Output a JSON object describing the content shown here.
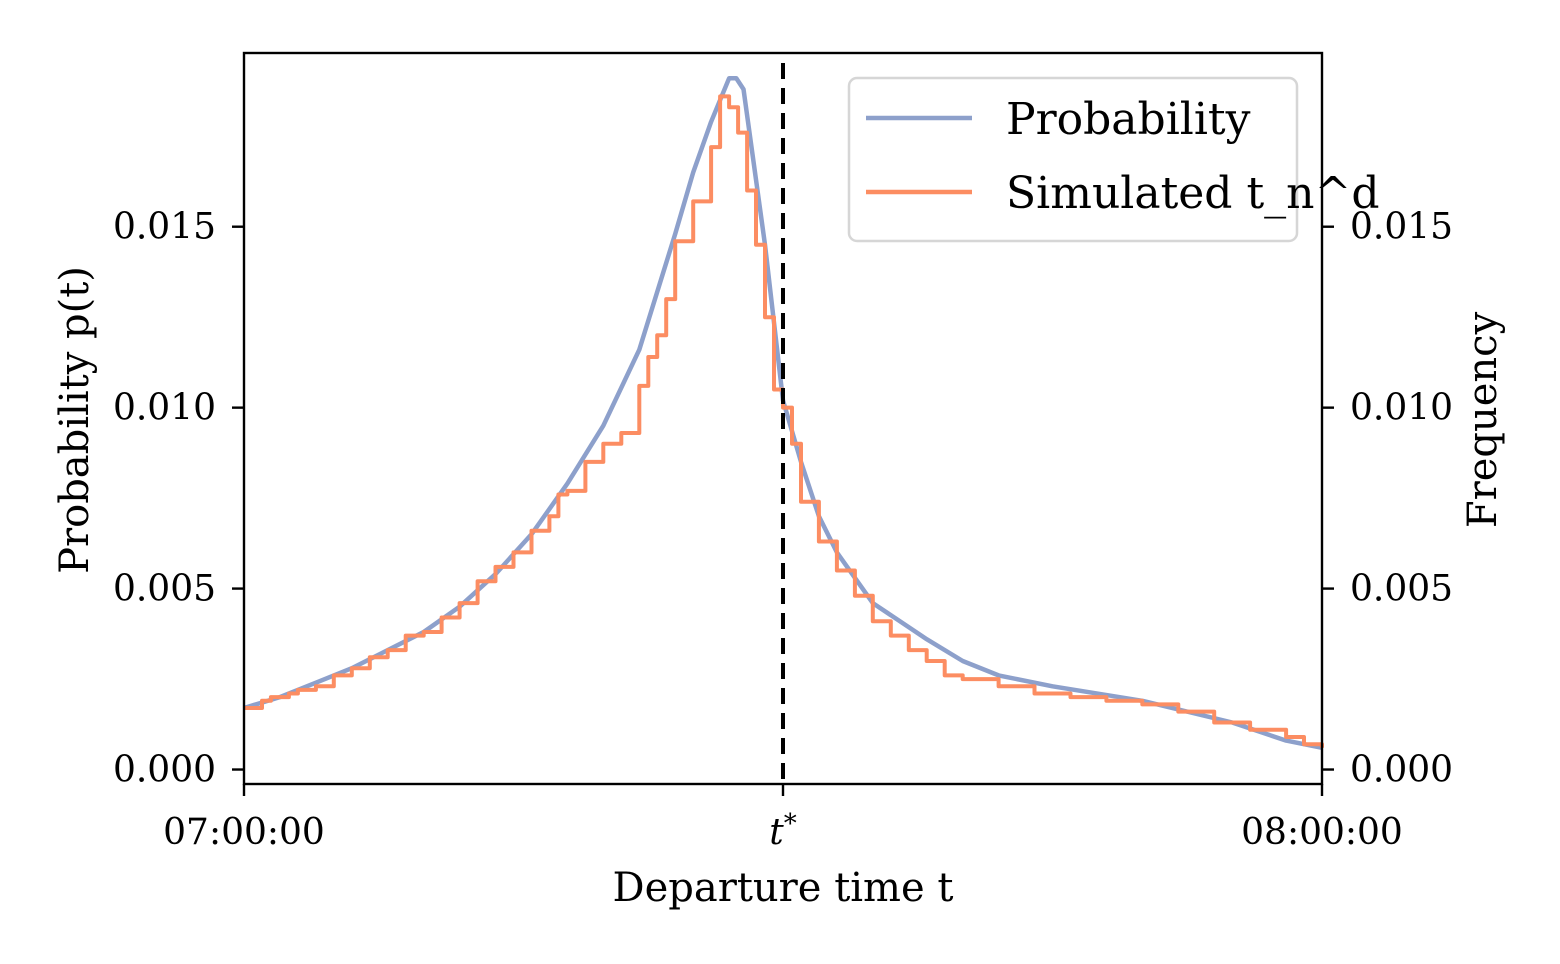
{
  "chart_data": {
    "type": "line",
    "xlabel": "Departure time t",
    "ylabel_left": "Probability p(t)",
    "ylabel_right": "Frequency",
    "x_ticks": [
      "07:00:00",
      "t*",
      "08:00:00"
    ],
    "x_tick_minutes": [
      0,
      30,
      60
    ],
    "x_range_minutes": [
      0,
      60
    ],
    "ylim": [
      -0.0004,
      0.0198
    ],
    "y_ticks_left": [
      "0.000",
      "0.005",
      "0.010",
      "0.015"
    ],
    "y_ticks_right": [
      "0.000",
      "0.005",
      "0.010",
      "0.015"
    ],
    "y_tick_values": [
      0,
      0.005,
      0.01,
      0.015
    ],
    "vline_minute": 30,
    "grid": false,
    "legend_position": "top-right",
    "colors": {
      "probability": "#8da0cb",
      "simulated": "#fc8d62",
      "vline": "#000000"
    },
    "series": [
      {
        "name": "Probability",
        "key": "probability",
        "kind": "line",
        "x": [
          0,
          2,
          4,
          6,
          8,
          10,
          12,
          14,
          16,
          18,
          20,
          22,
          24,
          25,
          26,
          27,
          27.4,
          27.8,
          28.3,
          29,
          30,
          31,
          32,
          33,
          35,
          38,
          40,
          42,
          45,
          50,
          55,
          58,
          60
        ],
        "y": [
          0.0017,
          0.002,
          0.0024,
          0.0028,
          0.0033,
          0.0038,
          0.0045,
          0.0054,
          0.0065,
          0.0079,
          0.0095,
          0.0116,
          0.0148,
          0.0165,
          0.0179,
          0.0191,
          0.0191,
          0.0188,
          0.017,
          0.0145,
          0.0102,
          0.0085,
          0.007,
          0.006,
          0.0046,
          0.0036,
          0.003,
          0.0026,
          0.0023,
          0.0019,
          0.0013,
          0.0008,
          0.0006
        ]
      },
      {
        "name": "Simulated t_n^d",
        "key": "simulated",
        "kind": "step",
        "x": [
          0,
          1,
          1.5,
          2.5,
          3,
          4,
          5,
          6,
          7,
          8,
          9,
          10,
          11,
          12,
          13,
          14,
          15,
          16,
          17,
          17.5,
          18,
          19,
          20,
          21,
          22,
          22.5,
          23,
          23.5,
          24,
          25,
          26,
          26.5,
          27,
          27.5,
          28,
          28.5,
          29,
          29.5,
          30,
          30.5,
          31,
          32,
          33,
          34,
          35,
          36,
          37,
          38,
          39,
          40,
          42,
          44,
          46,
          48,
          50,
          52,
          54,
          56,
          58,
          59,
          60
        ],
        "y": [
          0.0017,
          0.0019,
          0.002,
          0.0021,
          0.0022,
          0.0023,
          0.0026,
          0.0028,
          0.0031,
          0.0033,
          0.0037,
          0.0038,
          0.0042,
          0.0046,
          0.0052,
          0.0056,
          0.006,
          0.0066,
          0.007,
          0.0076,
          0.0077,
          0.0085,
          0.009,
          0.0093,
          0.0106,
          0.0114,
          0.012,
          0.013,
          0.0146,
          0.0157,
          0.0172,
          0.0186,
          0.0183,
          0.0176,
          0.016,
          0.0145,
          0.0125,
          0.0105,
          0.01,
          0.009,
          0.0074,
          0.0063,
          0.0055,
          0.0048,
          0.0041,
          0.0037,
          0.0033,
          0.003,
          0.0026,
          0.0025,
          0.0023,
          0.0021,
          0.002,
          0.0019,
          0.0018,
          0.0016,
          0.0013,
          0.0011,
          0.0009,
          0.0007,
          0.0006
        ]
      }
    ]
  }
}
